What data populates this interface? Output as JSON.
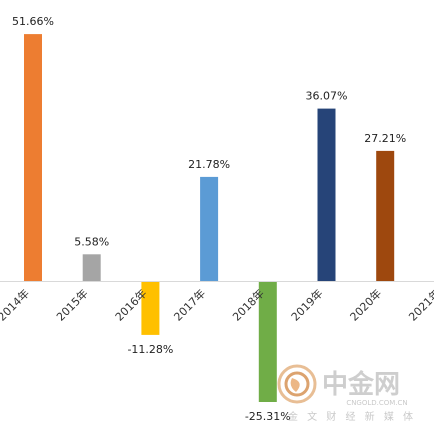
{
  "chart_data": {
    "type": "bar",
    "categories": [
      "2014年",
      "2015年",
      "2016年",
      "2017年",
      "2018年",
      "2019年",
      "2020年",
      "2021年"
    ],
    "values": [
      51.66,
      5.58,
      -11.28,
      21.78,
      -25.31,
      36.07,
      27.21,
      null
    ],
    "value_labels": [
      "51.66%",
      "5.58%",
      "-11.28%",
      "21.78%",
      "-25.31%",
      "36.07%",
      "27.21%",
      ""
    ],
    "bar_colors": [
      "#ED7D31",
      "#A5A5A5",
      "#FFC000",
      "#5B9BD5",
      "#70AD47",
      "#264478",
      "#9E480E",
      "#636363"
    ],
    "ylim": [
      -32,
      54
    ],
    "title": "",
    "xlabel": "",
    "ylabel": "",
    "grid": false,
    "legend": "none",
    "axis_color": "#d9d9d9"
  },
  "watermark": {
    "logo": "cngold-logo-icon",
    "brand": "中金网",
    "url": "CNGOLD.COM.CN",
    "slogan": "金 文 财 经 新 媒 体",
    "color": "#c8c8c8",
    "logo_color": "#e3a96f"
  }
}
